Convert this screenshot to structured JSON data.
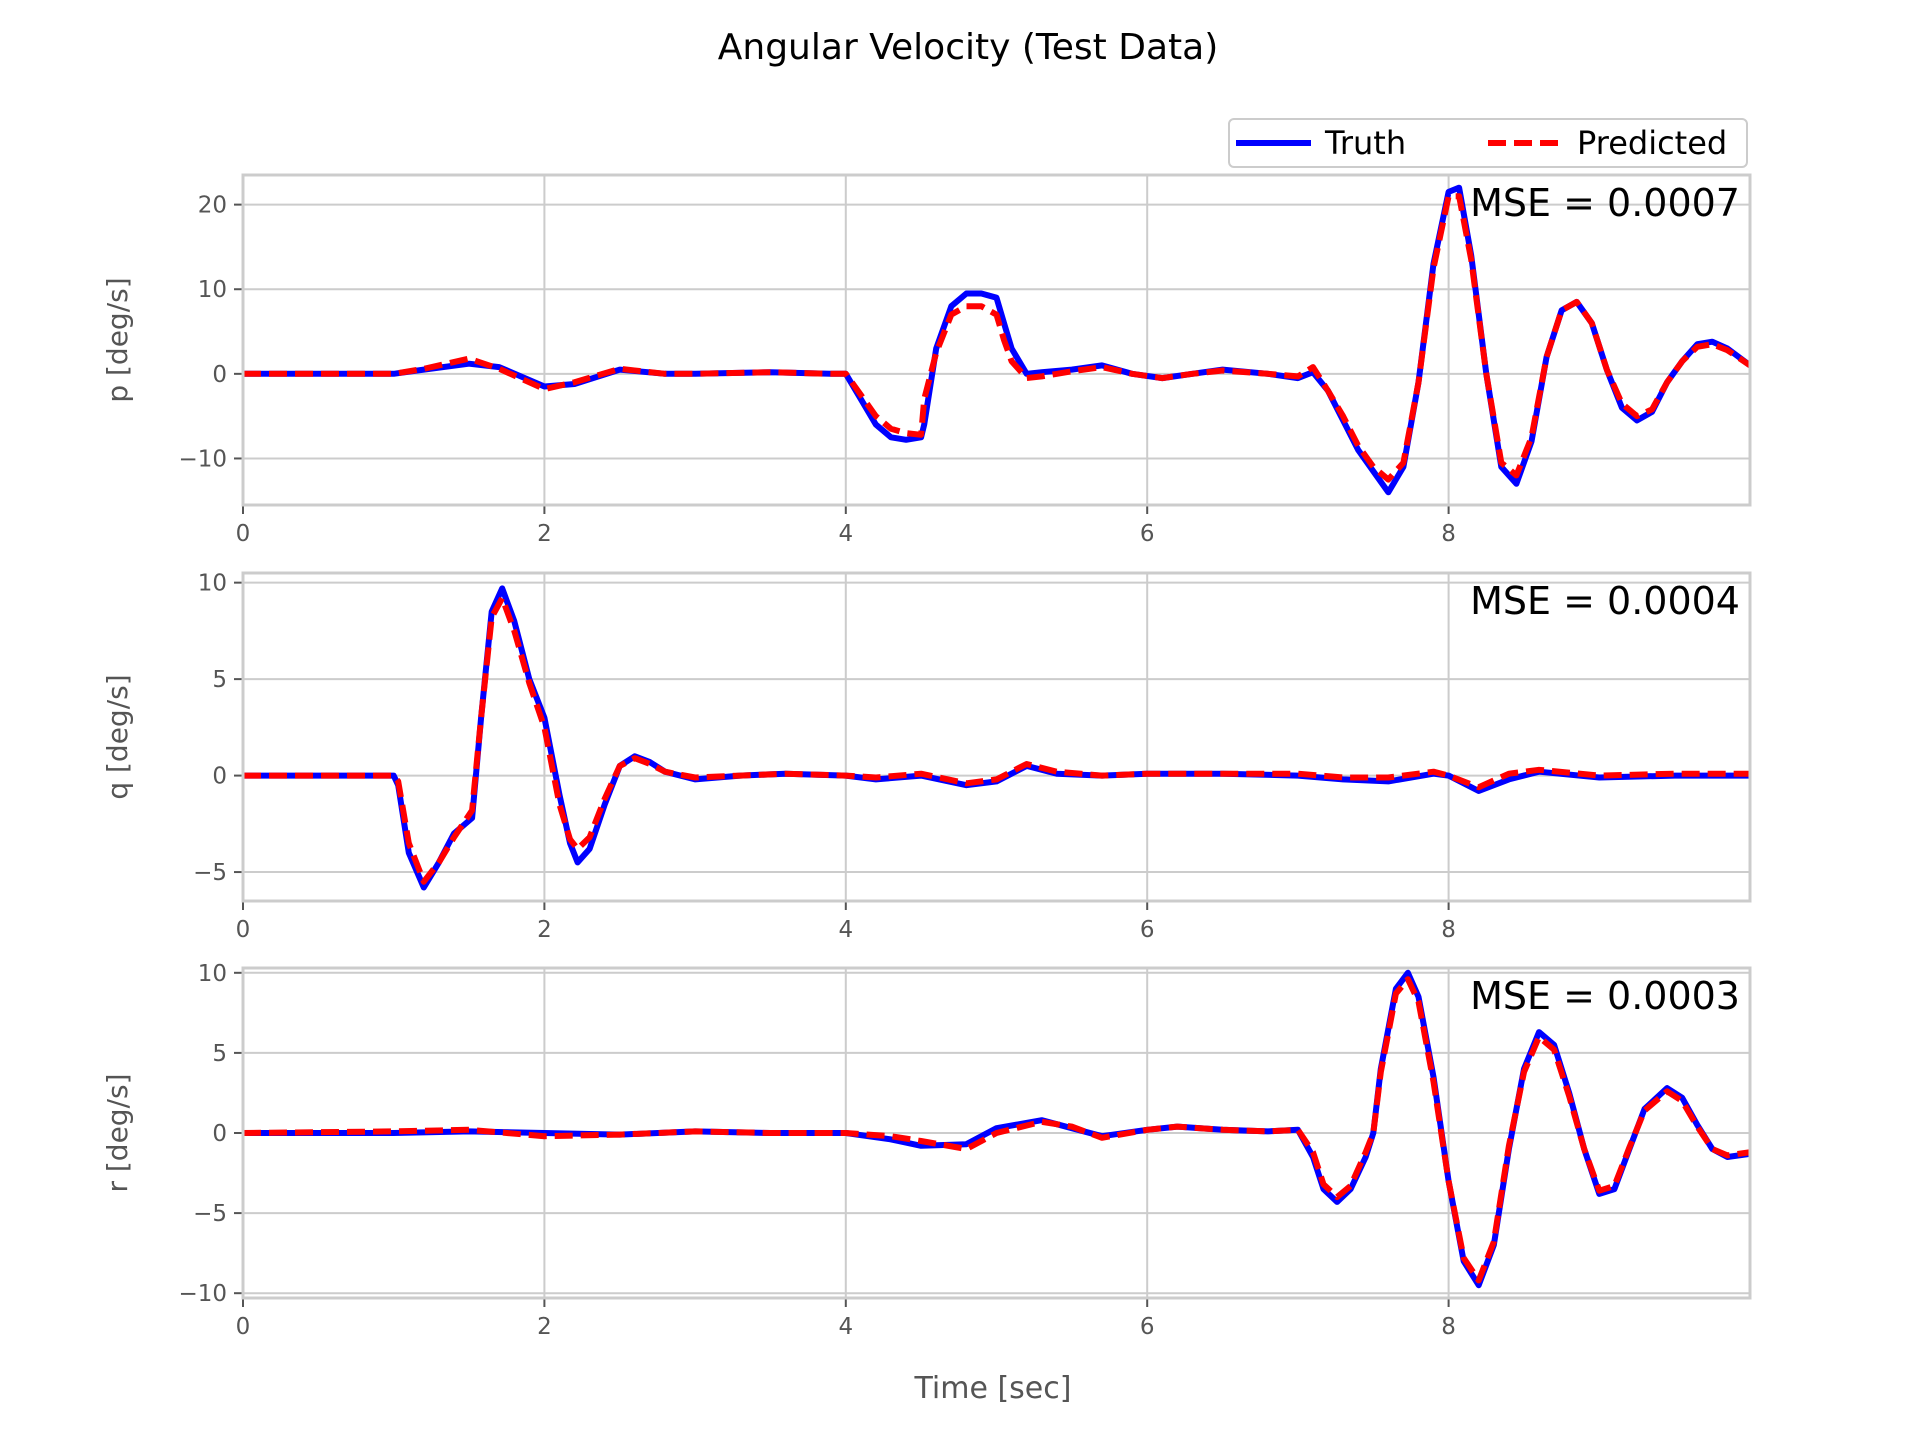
{
  "chart_data": {
    "type": "line",
    "title": "Angular Velocity (Test Data)",
    "xlabel": "Time [sec]",
    "legend": {
      "position": "top-right",
      "entries": [
        {
          "label": "Truth",
          "color": "#0000ff",
          "style": "solid"
        },
        {
          "label": "Predicted",
          "color": "#ff0000",
          "style": "dashed"
        }
      ]
    },
    "grid": true,
    "xlim": [
      0,
      10
    ],
    "xticks": [
      "0",
      "2",
      "4",
      "6",
      "8"
    ],
    "panels": [
      {
        "ylabel": "p [deg/s]",
        "mse_label": "MSE = 0.0007",
        "ylim": [
          -15.5,
          23.5
        ],
        "yticks": [
          20,
          10,
          0,
          -10
        ],
        "ytick_labels": [
          "20",
          "10",
          "0",
          "−10"
        ],
        "series": [
          {
            "name": "Truth",
            "x": [
              0,
              0.5,
              1.0,
              1.2,
              1.5,
              1.7,
              2.0,
              2.2,
              2.5,
              2.8,
              3.0,
              3.5,
              3.9,
              4.0,
              4.1,
              4.2,
              4.3,
              4.4,
              4.5,
              4.52,
              4.6,
              4.7,
              4.8,
              4.9,
              5.0,
              5.05,
              5.1,
              5.2,
              5.3,
              5.5,
              5.7,
              5.9,
              6.1,
              6.3,
              6.5,
              6.8,
              7.0,
              7.1,
              7.2,
              7.3,
              7.4,
              7.5,
              7.6,
              7.7,
              7.8,
              7.9,
              8.0,
              8.07,
              8.15,
              8.25,
              8.35,
              8.45,
              8.55,
              8.65,
              8.75,
              8.85,
              8.95,
              9.05,
              9.15,
              9.25,
              9.35,
              9.45,
              9.55,
              9.65,
              9.75,
              9.85,
              10.0
            ],
            "y": [
              0,
              0,
              0,
              0.5,
              1.2,
              0.8,
              -1.5,
              -1.2,
              0.5,
              0,
              0,
              0.2,
              0,
              0,
              -3,
              -6,
              -7.5,
              -7.8,
              -7.5,
              -6,
              3,
              8,
              9.5,
              9.5,
              9,
              6,
              3,
              0,
              0.2,
              0.5,
              1,
              0,
              -0.5,
              0,
              0.5,
              0,
              -0.5,
              0.2,
              -2,
              -5.5,
              -9,
              -11.5,
              -14,
              -11,
              -1,
              13,
              21.5,
              22,
              14,
              0,
              -11,
              -13,
              -8,
              2,
              7.5,
              8.5,
              6,
              0.5,
              -4,
              -5.5,
              -4.5,
              -1,
              1.5,
              3.5,
              3.8,
              3,
              1
            ]
          },
          {
            "name": "Predicted",
            "x": [
              0,
              0.5,
              1.0,
              1.2,
              1.5,
              1.7,
              2.0,
              2.2,
              2.5,
              2.8,
              3.0,
              3.5,
              3.9,
              4.0,
              4.1,
              4.2,
              4.3,
              4.4,
              4.5,
              4.52,
              4.6,
              4.7,
              4.8,
              4.9,
              5.0,
              5.05,
              5.1,
              5.2,
              5.3,
              5.5,
              5.7,
              5.9,
              6.1,
              6.3,
              6.5,
              6.8,
              7.0,
              7.1,
              7.2,
              7.3,
              7.4,
              7.5,
              7.6,
              7.7,
              7.8,
              7.9,
              8.0,
              8.07,
              8.15,
              8.25,
              8.35,
              8.45,
              8.55,
              8.65,
              8.75,
              8.85,
              8.95,
              9.05,
              9.15,
              9.25,
              9.35,
              9.45,
              9.55,
              9.65,
              9.75,
              9.85,
              10.0
            ],
            "y": [
              0,
              0,
              0,
              0.6,
              1.8,
              0.6,
              -1.8,
              -1.0,
              0.6,
              0,
              0,
              0.2,
              0,
              0,
              -2.5,
              -5,
              -6.5,
              -7,
              -7.2,
              -3,
              2.5,
              7,
              8,
              8,
              7,
              4,
              1.5,
              -0.5,
              -0.3,
              0.3,
              0.8,
              0,
              -0.5,
              0,
              0.4,
              0,
              -0.3,
              0.8,
              -2,
              -5,
              -8.5,
              -11,
              -12.5,
              -10.5,
              -1,
              12.5,
              21,
              21,
              13.5,
              0,
              -10.5,
              -12,
              -7.5,
              2,
              7.5,
              8.5,
              6,
              0.5,
              -3.5,
              -5,
              -4.2,
              -1,
              1.5,
              3.2,
              3.5,
              2.8,
              1
            ]
          }
        ]
      },
      {
        "ylabel": "q [deg/s]",
        "mse_label": "MSE = 0.0004",
        "ylim": [
          -6.5,
          10.5
        ],
        "yticks": [
          10,
          5,
          0,
          -5
        ],
        "ytick_labels": [
          "10",
          "5",
          "0",
          "−5"
        ],
        "series": [
          {
            "name": "Truth",
            "x": [
              0,
              0.5,
              1.0,
              1.03,
              1.1,
              1.2,
              1.3,
              1.4,
              1.52,
              1.58,
              1.65,
              1.72,
              1.8,
              1.9,
              2.0,
              2.1,
              2.17,
              2.22,
              2.3,
              2.4,
              2.5,
              2.6,
              2.7,
              2.8,
              3.0,
              3.3,
              3.6,
              4.0,
              4.2,
              4.5,
              4.8,
              5.0,
              5.2,
              5.4,
              5.7,
              6.0,
              6.5,
              7.0,
              7.3,
              7.6,
              7.9,
              8.0,
              8.2,
              8.4,
              8.6,
              9.0,
              9.5,
              10.0
            ],
            "y": [
              0,
              0,
              0,
              -0.5,
              -4,
              -5.8,
              -4.5,
              -3,
              -2.2,
              3,
              8.5,
              9.7,
              8,
              5,
              3,
              -1,
              -3.5,
              -4.5,
              -3.8,
              -1.5,
              0.5,
              1.0,
              0.7,
              0.2,
              -0.2,
              0,
              0.1,
              0,
              -0.2,
              0,
              -0.5,
              -0.3,
              0.5,
              0.1,
              0,
              0.1,
              0.1,
              0,
              -0.2,
              -0.3,
              0.1,
              0,
              -0.8,
              -0.2,
              0.2,
              -0.1,
              0,
              0
            ]
          },
          {
            "name": "Predicted",
            "x": [
              0,
              0.5,
              1.0,
              1.03,
              1.1,
              1.2,
              1.3,
              1.4,
              1.52,
              1.58,
              1.65,
              1.72,
              1.8,
              1.9,
              2.0,
              2.1,
              2.17,
              2.22,
              2.3,
              2.4,
              2.5,
              2.6,
              2.7,
              2.8,
              3.0,
              3.3,
              3.6,
              4.0,
              4.2,
              4.5,
              4.8,
              5.0,
              5.2,
              5.4,
              5.7,
              6.0,
              6.5,
              7.0,
              7.3,
              7.6,
              7.9,
              8.0,
              8.2,
              8.4,
              8.6,
              9.0,
              9.5,
              10.0
            ],
            "y": [
              0,
              0,
              0,
              -0.3,
              -3.5,
              -5.5,
              -4.5,
              -3.2,
              -1.8,
              3,
              8.2,
              9.2,
              7.5,
              4.8,
              2.5,
              -1.5,
              -3.3,
              -3.8,
              -3.2,
              -1.2,
              0.5,
              0.9,
              0.6,
              0.2,
              -0.1,
              0,
              0.1,
              0,
              -0.1,
              0.1,
              -0.4,
              -0.2,
              0.6,
              0.2,
              0,
              0.1,
              0.1,
              0.1,
              -0.1,
              -0.1,
              0.2,
              0,
              -0.6,
              0.1,
              0.3,
              0,
              0.1,
              0.1
            ]
          }
        ]
      },
      {
        "ylabel": "r [deg/s]",
        "mse_label": "MSE = 0.0003",
        "ylim": [
          -10.3,
          10.3
        ],
        "yticks": [
          10,
          5,
          0,
          -5,
          -10
        ],
        "ytick_labels": [
          "10",
          "5",
          "0",
          "−5",
          "−10"
        ],
        "series": [
          {
            "name": "Truth",
            "x": [
              0,
              1.0,
              1.5,
              2.0,
              2.5,
              3.0,
              3.5,
              4.0,
              4.3,
              4.5,
              4.8,
              5.0,
              5.3,
              5.5,
              5.7,
              6.0,
              6.2,
              6.5,
              6.8,
              7.0,
              7.1,
              7.17,
              7.26,
              7.35,
              7.45,
              7.5,
              7.55,
              7.65,
              7.73,
              7.8,
              7.9,
              8.0,
              8.1,
              8.2,
              8.3,
              8.4,
              8.5,
              8.6,
              8.7,
              8.8,
              8.9,
              9.0,
              9.1,
              9.2,
              9.3,
              9.45,
              9.55,
              9.65,
              9.75,
              9.85,
              10.0
            ],
            "y": [
              0,
              0,
              0.1,
              0,
              -0.1,
              0.1,
              0,
              0,
              -0.4,
              -0.8,
              -0.7,
              0.3,
              0.8,
              0.3,
              -0.2,
              0.2,
              0.4,
              0.2,
              0.1,
              0.2,
              -1.5,
              -3.5,
              -4.3,
              -3.5,
              -1.5,
              0,
              4,
              9,
              10,
              8.5,
              3.5,
              -3,
              -8,
              -9.5,
              -7,
              -1,
              4,
              6.3,
              5.5,
              2.5,
              -1,
              -3.8,
              -3.5,
              -1,
              1.5,
              2.8,
              2.2,
              0.5,
              -1,
              -1.5,
              -1.3
            ]
          },
          {
            "name": "Predicted",
            "x": [
              0,
              1.0,
              1.5,
              2.0,
              2.5,
              3.0,
              3.5,
              4.0,
              4.3,
              4.5,
              4.8,
              5.0,
              5.3,
              5.5,
              5.7,
              6.0,
              6.2,
              6.5,
              6.8,
              7.0,
              7.1,
              7.17,
              7.26,
              7.35,
              7.45,
              7.5,
              7.55,
              7.65,
              7.73,
              7.8,
              7.9,
              8.0,
              8.1,
              8.2,
              8.3,
              8.4,
              8.5,
              8.6,
              8.7,
              8.8,
              8.9,
              9.0,
              9.1,
              9.2,
              9.3,
              9.45,
              9.55,
              9.65,
              9.75,
              9.85,
              10.0
            ],
            "y": [
              0,
              0.1,
              0.2,
              -0.2,
              -0.1,
              0.1,
              0,
              0,
              -0.2,
              -0.5,
              -1.0,
              0,
              0.7,
              0.4,
              -0.3,
              0.2,
              0.4,
              0.2,
              0.1,
              0.2,
              -1.2,
              -3.2,
              -4.0,
              -3.3,
              -1.2,
              0,
              3.8,
              8.7,
              9.6,
              8.2,
              3.2,
              -3,
              -7.8,
              -9.2,
              -6.8,
              -0.8,
              3.8,
              6.0,
              5.2,
              2.3,
              -1,
              -3.6,
              -3.3,
              -0.9,
              1.4,
              2.6,
              2.0,
              0.4,
              -1,
              -1.4,
              -1.2
            ]
          }
        ]
      }
    ]
  }
}
